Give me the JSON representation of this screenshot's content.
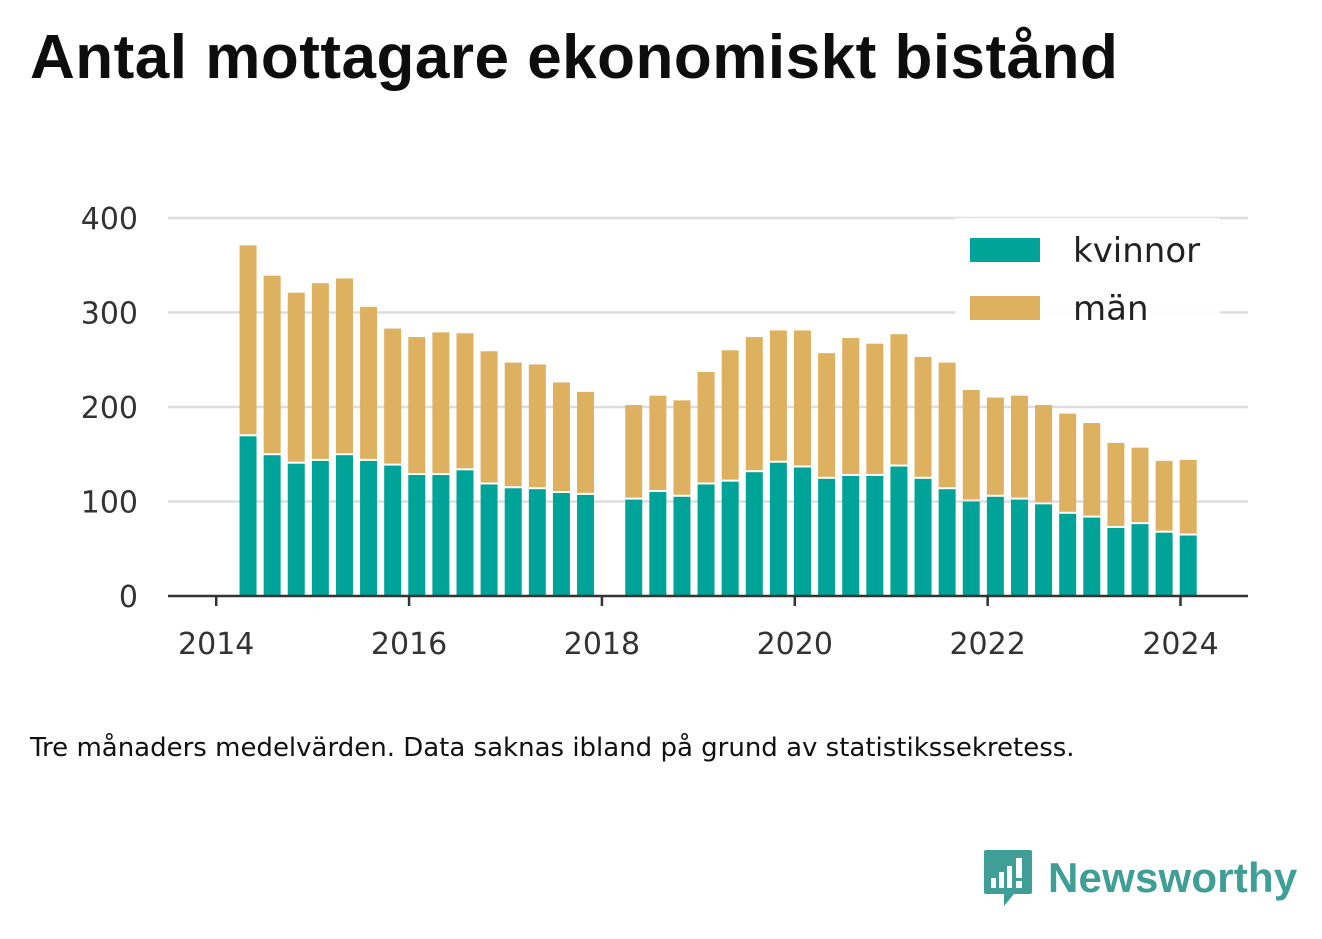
{
  "title": "Antal mottagare ekonomiskt bistånd",
  "note": "Tre månaders medelvärden. Data saknas ibland på grund av statistikssekretess.",
  "brand": {
    "name": "Newsworthy",
    "color": "#3f9e96"
  },
  "chart_data": {
    "type": "bar",
    "stacked": true,
    "title": "Antal mottagare ekonomiskt bistånd",
    "xlabel": "",
    "ylabel": "",
    "ylim": [
      0,
      400
    ],
    "yticks": [
      0,
      100,
      200,
      300,
      400
    ],
    "xticks": [
      2014,
      2016,
      2018,
      2020,
      2022,
      2024
    ],
    "xlim": [
      2013.5,
      2024.7
    ],
    "grid": true,
    "legend_position": "top-right",
    "x": [
      2014.33,
      2014.58,
      2014.83,
      2015.08,
      2015.33,
      2015.58,
      2015.83,
      2016.08,
      2016.33,
      2016.58,
      2016.83,
      2017.08,
      2017.33,
      2017.58,
      2017.83,
      2018.33,
      2018.58,
      2018.83,
      2019.08,
      2019.33,
      2019.58,
      2019.83,
      2020.08,
      2020.33,
      2020.58,
      2020.83,
      2021.08,
      2021.33,
      2021.58,
      2021.83,
      2022.08,
      2022.33,
      2022.58,
      2022.83,
      2023.08,
      2023.33,
      2023.58,
      2023.83,
      2024.08
    ],
    "series": [
      {
        "name": "kvinnor",
        "color": "#00a398",
        "values": [
          169,
          149,
          140,
          143,
          149,
          143,
          138,
          128,
          128,
          133,
          118,
          114,
          113,
          109,
          107,
          102,
          110,
          105,
          118,
          121,
          131,
          141,
          136,
          124,
          127,
          127,
          137,
          124,
          113,
          100,
          105,
          102,
          97,
          87,
          83,
          72,
          76,
          67,
          64
        ]
      },
      {
        "name": "män",
        "color": "#ddb15f",
        "values": [
          202,
          190,
          181,
          188,
          187,
          163,
          145,
          146,
          151,
          145,
          141,
          133,
          132,
          117,
          109,
          100,
          102,
          102,
          119,
          139,
          143,
          140,
          145,
          133,
          146,
          140,
          140,
          129,
          134,
          118,
          105,
          110,
          105,
          106,
          100,
          90,
          81,
          76,
          80
        ]
      }
    ]
  }
}
